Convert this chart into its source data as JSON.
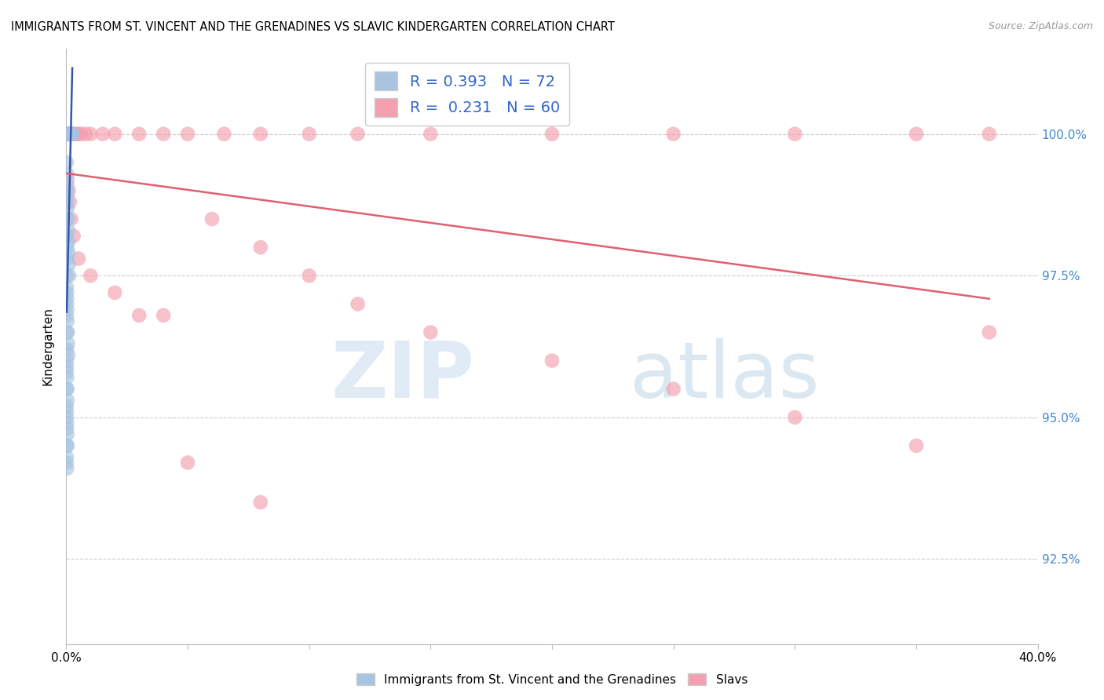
{
  "title": "IMMIGRANTS FROM ST. VINCENT AND THE GRENADINES VS SLAVIC KINDERGARTEN CORRELATION CHART",
  "source": "Source: ZipAtlas.com",
  "ylabel": "Kindergarten",
  "y_ticks": [
    92.5,
    95.0,
    97.5,
    100.0
  ],
  "y_tick_labels": [
    "92.5%",
    "95.0%",
    "97.5%",
    "100.0%"
  ],
  "x_range": [
    0.0,
    40.0
  ],
  "y_range": [
    91.0,
    101.5
  ],
  "blue_R": 0.393,
  "blue_N": 72,
  "pink_R": 0.231,
  "pink_N": 60,
  "blue_color": "#a8c4e0",
  "pink_color": "#f4a0b0",
  "blue_line_color": "#3355aa",
  "pink_line_color": "#e06070",
  "legend_label_blue": "Immigrants from St. Vincent and the Grenadines",
  "legend_label_pink": "Slavs",
  "blue_x": [
    0.02,
    0.03,
    0.04,
    0.05,
    0.06,
    0.07,
    0.08,
    0.09,
    0.1,
    0.11,
    0.12,
    0.13,
    0.14,
    0.15,
    0.16,
    0.17,
    0.18,
    0.19,
    0.2,
    0.21,
    0.22,
    0.23,
    0.24,
    0.25,
    0.02,
    0.03,
    0.04,
    0.05,
    0.06,
    0.07,
    0.08,
    0.09,
    0.1,
    0.11,
    0.12,
    0.02,
    0.03,
    0.04,
    0.05,
    0.06,
    0.07,
    0.08,
    0.02,
    0.03,
    0.04,
    0.05,
    0.02,
    0.03,
    0.04,
    0.05,
    0.02,
    0.03,
    0.04,
    0.02,
    0.03,
    0.02,
    0.03,
    0.02,
    0.02,
    0.02,
    0.02,
    0.02,
    0.02,
    0.02,
    0.02,
    0.02,
    0.02,
    0.02,
    0.02,
    0.02,
    0.02,
    0.02
  ],
  "blue_y": [
    100.0,
    100.0,
    100.0,
    100.0,
    100.0,
    100.0,
    100.0,
    100.0,
    100.0,
    100.0,
    100.0,
    100.0,
    100.0,
    100.0,
    100.0,
    100.0,
    100.0,
    100.0,
    100.0,
    100.0,
    100.0,
    100.0,
    100.0,
    100.0,
    99.5,
    99.3,
    99.1,
    98.9,
    98.7,
    98.5,
    98.3,
    98.1,
    97.9,
    97.7,
    97.5,
    97.3,
    97.1,
    96.9,
    96.7,
    96.5,
    96.3,
    96.1,
    95.9,
    95.7,
    95.5,
    95.3,
    95.1,
    94.9,
    94.7,
    94.5,
    94.3,
    94.1,
    97.8,
    97.5,
    97.2,
    98.5,
    98.0,
    99.0,
    98.8,
    98.2,
    97.0,
    96.8,
    96.5,
    96.2,
    96.0,
    95.8,
    95.5,
    95.2,
    95.0,
    94.8,
    94.5,
    94.2
  ],
  "pink_x": [
    0.02,
    0.03,
    0.04,
    0.05,
    0.06,
    0.07,
    0.08,
    0.09,
    0.1,
    0.11,
    0.12,
    0.15,
    0.18,
    0.2,
    0.22,
    0.25,
    0.3,
    0.35,
    0.4,
    0.5,
    0.6,
    0.8,
    1.0,
    1.5,
    2.0,
    3.0,
    4.0,
    5.0,
    6.5,
    8.0,
    10.0,
    12.0,
    15.0,
    20.0,
    25.0,
    30.0,
    35.0,
    38.0,
    0.05,
    0.1,
    0.15,
    0.2,
    0.3,
    0.5,
    1.0,
    2.0,
    4.0,
    6.0,
    8.0,
    10.0,
    12.0,
    15.0,
    20.0,
    25.0,
    30.0,
    35.0,
    38.0,
    3.0,
    5.0,
    8.0
  ],
  "pink_y": [
    100.0,
    100.0,
    100.0,
    100.0,
    100.0,
    100.0,
    100.0,
    100.0,
    100.0,
    100.0,
    100.0,
    100.0,
    100.0,
    100.0,
    100.0,
    100.0,
    100.0,
    100.0,
    100.0,
    100.0,
    100.0,
    100.0,
    100.0,
    100.0,
    100.0,
    100.0,
    100.0,
    100.0,
    100.0,
    100.0,
    100.0,
    100.0,
    100.0,
    100.0,
    100.0,
    100.0,
    100.0,
    100.0,
    99.2,
    99.0,
    98.8,
    98.5,
    98.2,
    97.8,
    97.5,
    97.2,
    96.8,
    98.5,
    98.0,
    97.5,
    97.0,
    96.5,
    96.0,
    95.5,
    95.0,
    94.5,
    96.5,
    96.8,
    94.2,
    93.5
  ]
}
